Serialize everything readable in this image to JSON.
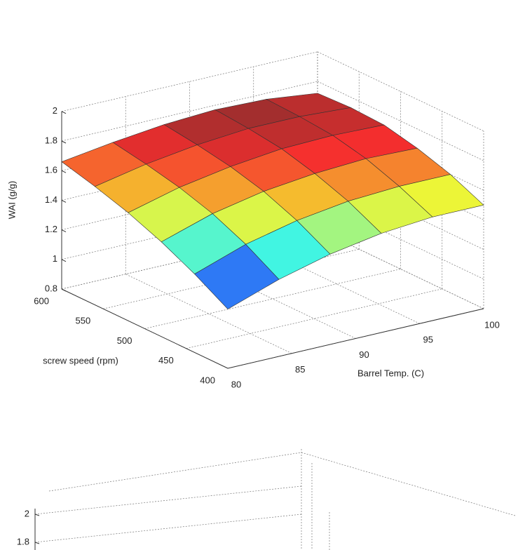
{
  "chart_data": [
    {
      "type": "surface",
      "zlabel": "WAI (g/g)",
      "ylabel": "screw speed (rpm)",
      "xlabel": "Barrel Temp. (C)",
      "x": [
        80,
        84,
        88,
        92,
        96,
        100
      ],
      "y": [
        400,
        440,
        480,
        520,
        560,
        600
      ],
      "z": [
        [
          1.2,
          1.32,
          1.41,
          1.47,
          1.5,
          1.5
        ],
        [
          1.33,
          1.45,
          1.53,
          1.58,
          1.6,
          1.6
        ],
        [
          1.44,
          1.55,
          1.62,
          1.66,
          1.68,
          1.67
        ],
        [
          1.53,
          1.62,
          1.68,
          1.72,
          1.73,
          1.72
        ],
        [
          1.6,
          1.67,
          1.72,
          1.75,
          1.75,
          1.73
        ],
        [
          1.66,
          1.71,
          1.75,
          1.77,
          1.76,
          1.72
        ]
      ],
      "xlim": [
        80,
        100
      ],
      "ylim": [
        400,
        600
      ],
      "zlim": [
        0.8,
        2
      ],
      "xticks": [
        80,
        85,
        90,
        95,
        100
      ],
      "yticks": [
        400,
        450,
        500,
        550,
        600
      ],
      "zticks": [
        0.8,
        1,
        1.2,
        1.4,
        1.6,
        1.8,
        2
      ],
      "grid": true,
      "colormap": "jet"
    },
    {
      "type": "surface",
      "zticks": [
        1.8,
        2
      ]
    }
  ]
}
